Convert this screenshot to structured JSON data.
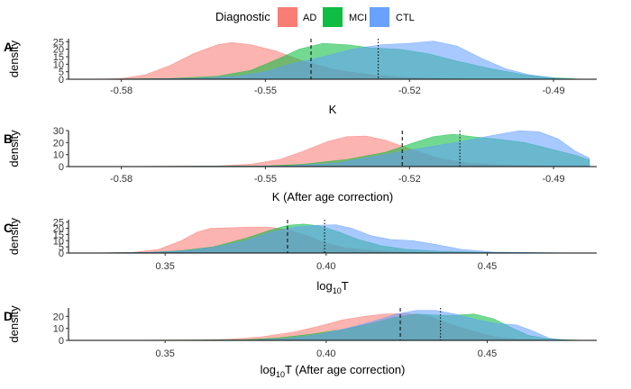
{
  "legend": {
    "title": "Diagnostic",
    "items": [
      {
        "label": "AD",
        "color": "#F8766D"
      },
      {
        "label": "MCI",
        "color": "#00BA38"
      },
      {
        "label": "CTL",
        "color": "#619CFF"
      }
    ]
  },
  "chart_data": [
    {
      "type": "area",
      "panel": "A",
      "ylabel": "density",
      "xlabel": "K",
      "xlim": [
        -0.591,
        -0.481
      ],
      "xticks": [
        -0.58,
        -0.55,
        -0.52,
        -0.49
      ],
      "xtick_labels": [
        "-0.58",
        "-0.55",
        "-0.52",
        "-0.49"
      ],
      "ylim": [
        0,
        27
      ],
      "yticks": [
        0,
        5,
        10,
        15,
        20,
        25
      ],
      "ytick_labels": [
        "0",
        "5",
        "10",
        "15",
        "20",
        "25"
      ],
      "vlines": [
        {
          "x": -0.5405,
          "style": "dashed"
        },
        {
          "x": -0.5265,
          "style": "dotted"
        }
      ],
      "series": [
        {
          "name": "AD",
          "color": "#F8766D",
          "points": [
            [
              -0.586,
              0
            ],
            [
              -0.58,
              0.5
            ],
            [
              -0.575,
              3
            ],
            [
              -0.57,
              9
            ],
            [
              -0.565,
              17
            ],
            [
              -0.56,
              23
            ],
            [
              -0.557,
              24.5
            ],
            [
              -0.553,
              23
            ],
            [
              -0.548,
              19
            ],
            [
              -0.542,
              12
            ],
            [
              -0.535,
              6
            ],
            [
              -0.528,
              3
            ],
            [
              -0.52,
              1
            ],
            [
              -0.51,
              0.3
            ],
            [
              -0.5,
              0
            ]
          ]
        },
        {
          "name": "MCI",
          "color": "#00BA38",
          "points": [
            [
              -0.586,
              0
            ],
            [
              -0.57,
              0.5
            ],
            [
              -0.56,
              2
            ],
            [
              -0.553,
              6
            ],
            [
              -0.547,
              14
            ],
            [
              -0.543,
              20
            ],
            [
              -0.538,
              24
            ],
            [
              -0.533,
              23
            ],
            [
              -0.528,
              21
            ],
            [
              -0.522,
              20
            ],
            [
              -0.516,
              17
            ],
            [
              -0.51,
              12
            ],
            [
              -0.503,
              7
            ],
            [
              -0.496,
              3
            ],
            [
              -0.49,
              1
            ],
            [
              -0.484,
              0
            ]
          ]
        },
        {
          "name": "CTL",
          "color": "#619CFF",
          "points": [
            [
              -0.586,
              0
            ],
            [
              -0.565,
              0.5
            ],
            [
              -0.556,
              2
            ],
            [
              -0.55,
              5
            ],
            [
              -0.545,
              10
            ],
            [
              -0.538,
              15
            ],
            [
              -0.532,
              20
            ],
            [
              -0.526,
              23
            ],
            [
              -0.52,
              24
            ],
            [
              -0.515,
              25.5
            ],
            [
              -0.51,
              22
            ],
            [
              -0.505,
              14
            ],
            [
              -0.5,
              7
            ],
            [
              -0.495,
              3
            ],
            [
              -0.489,
              0.5
            ],
            [
              -0.484,
              0
            ]
          ]
        }
      ]
    },
    {
      "type": "area",
      "panel": "B",
      "ylabel": "density",
      "xlabel": "K (After age correction)",
      "xlim": [
        -0.591,
        -0.481
      ],
      "xticks": [
        -0.58,
        -0.55,
        -0.52,
        -0.49
      ],
      "xtick_labels": [
        "-0.58",
        "-0.55",
        "-0.52",
        "-0.49"
      ],
      "ylim": [
        0,
        30
      ],
      "yticks": [
        0,
        10,
        20,
        30
      ],
      "ytick_labels": [
        "0",
        "10",
        "20",
        "30"
      ],
      "vlines": [
        {
          "x": -0.5215,
          "style": "dashed"
        },
        {
          "x": -0.5095,
          "style": "dotted"
        }
      ],
      "series": [
        {
          "name": "AD",
          "color": "#F8766D",
          "points": [
            [
              -0.586,
              0
            ],
            [
              -0.56,
              0.5
            ],
            [
              -0.553,
              2
            ],
            [
              -0.547,
              6
            ],
            [
              -0.542,
              13
            ],
            [
              -0.537,
              21
            ],
            [
              -0.533,
              25
            ],
            [
              -0.529,
              25.5
            ],
            [
              -0.525,
              22
            ],
            [
              -0.52,
              15
            ],
            [
              -0.514,
              7
            ],
            [
              -0.508,
              3
            ],
            [
              -0.5,
              1
            ],
            [
              -0.49,
              0.2
            ],
            [
              -0.483,
              0
            ]
          ]
        },
        {
          "name": "MCI",
          "color": "#00BA38",
          "points": [
            [
              -0.586,
              0
            ],
            [
              -0.55,
              0.5
            ],
            [
              -0.542,
              2
            ],
            [
              -0.533,
              6
            ],
            [
              -0.525,
              12
            ],
            [
              -0.519,
              20
            ],
            [
              -0.515,
              25
            ],
            [
              -0.511,
              27
            ],
            [
              -0.507,
              25
            ],
            [
              -0.502,
              23
            ],
            [
              -0.496,
              20
            ],
            [
              -0.49,
              14
            ],
            [
              -0.485,
              9
            ],
            [
              -0.4825,
              5.5
            ],
            [
              -0.4825,
              0
            ]
          ]
        },
        {
          "name": "CTL",
          "color": "#619CFF",
          "points": [
            [
              -0.586,
              0
            ],
            [
              -0.545,
              0.5
            ],
            [
              -0.535,
              3
            ],
            [
              -0.528,
              8
            ],
            [
              -0.521,
              13
            ],
            [
              -0.515,
              17
            ],
            [
              -0.509,
              21
            ],
            [
              -0.504,
              25
            ],
            [
              -0.5,
              28
            ],
            [
              -0.497,
              30
            ],
            [
              -0.493,
              29
            ],
            [
              -0.489,
              23
            ],
            [
              -0.4855,
              13
            ],
            [
              -0.4825,
              7
            ],
            [
              -0.4825,
              0
            ]
          ]
        }
      ]
    },
    {
      "type": "area",
      "panel": "C",
      "ylabel": "density",
      "xlabel": "log10T",
      "xlabel_base": "log",
      "xlabel_sub": "10",
      "xlabel_tail": "T",
      "xlim": [
        0.32,
        0.484
      ],
      "xticks": [
        0.35,
        0.4,
        0.45
      ],
      "xtick_labels": [
        "0.35",
        "0.40",
        "0.45"
      ],
      "ylim": [
        0,
        27
      ],
      "yticks": [
        0,
        5,
        10,
        15,
        20,
        25
      ],
      "ytick_labels": [
        "0",
        "5",
        "10",
        "15",
        "20",
        "25"
      ],
      "vlines": [
        {
          "x": 0.388,
          "style": "dashed"
        },
        {
          "x": 0.3995,
          "style": "dotted"
        }
      ],
      "series": [
        {
          "name": "AD",
          "color": "#F8766D",
          "points": [
            [
              0.325,
              0
            ],
            [
              0.34,
              0.5
            ],
            [
              0.348,
              3
            ],
            [
              0.355,
              10
            ],
            [
              0.36,
              17
            ],
            [
              0.364,
              20
            ],
            [
              0.37,
              20.5
            ],
            [
              0.376,
              21
            ],
            [
              0.382,
              21
            ],
            [
              0.388,
              19
            ],
            [
              0.394,
              14
            ],
            [
              0.4,
              8
            ],
            [
              0.406,
              4
            ],
            [
              0.415,
              2
            ],
            [
              0.425,
              0.5
            ],
            [
              0.44,
              0
            ]
          ]
        },
        {
          "name": "MCI",
          "color": "#00BA38",
          "points": [
            [
              0.325,
              0
            ],
            [
              0.345,
              0.5
            ],
            [
              0.355,
              2
            ],
            [
              0.365,
              5
            ],
            [
              0.375,
              12
            ],
            [
              0.382,
              18
            ],
            [
              0.388,
              22.5
            ],
            [
              0.393,
              23.5
            ],
            [
              0.398,
              22
            ],
            [
              0.404,
              17
            ],
            [
              0.41,
              11
            ],
            [
              0.417,
              6
            ],
            [
              0.425,
              3
            ],
            [
              0.435,
              1.5
            ],
            [
              0.45,
              0.5
            ],
            [
              0.48,
              0
            ]
          ]
        },
        {
          "name": "CTL",
          "color": "#619CFF",
          "points": [
            [
              0.325,
              0
            ],
            [
              0.345,
              0.5
            ],
            [
              0.357,
              2
            ],
            [
              0.366,
              5
            ],
            [
              0.375,
              10
            ],
            [
              0.383,
              17
            ],
            [
              0.39,
              21
            ],
            [
              0.397,
              22.5
            ],
            [
              0.403,
              23
            ],
            [
              0.408,
              20
            ],
            [
              0.414,
              14
            ],
            [
              0.42,
              11
            ],
            [
              0.427,
              10
            ],
            [
              0.434,
              7
            ],
            [
              0.442,
              3
            ],
            [
              0.452,
              0.8
            ],
            [
              0.48,
              0
            ]
          ]
        }
      ]
    },
    {
      "type": "area",
      "panel": "D",
      "ylabel": "density",
      "xlabel": "log10T (After age correction)",
      "xlabel_base": "log",
      "xlabel_sub": "10",
      "xlabel_tail": "T (After age correction)",
      "xlim": [
        0.32,
        0.484
      ],
      "xticks": [
        0.35,
        0.4,
        0.45
      ],
      "xtick_labels": [
        "0.35",
        "0.40",
        "0.45"
      ],
      "ylim": [
        0,
        27
      ],
      "yticks": [
        0,
        10,
        20
      ],
      "ytick_labels": [
        "0",
        "10",
        "20"
      ],
      "vlines": [
        {
          "x": 0.423,
          "style": "dashed"
        },
        {
          "x": 0.4355,
          "style": "dotted"
        }
      ],
      "series": [
        {
          "name": "AD",
          "color": "#F8766D",
          "points": [
            [
              0.325,
              0
            ],
            [
              0.36,
              0.3
            ],
            [
              0.37,
              1
            ],
            [
              0.38,
              3
            ],
            [
              0.39,
              7
            ],
            [
              0.398,
              12
            ],
            [
              0.405,
              17
            ],
            [
              0.412,
              20
            ],
            [
              0.418,
              22
            ],
            [
              0.425,
              22.5
            ],
            [
              0.432,
              20
            ],
            [
              0.438,
              14
            ],
            [
              0.445,
              8
            ],
            [
              0.452,
              3
            ],
            [
              0.46,
              1
            ],
            [
              0.47,
              0
            ]
          ]
        },
        {
          "name": "MCI",
          "color": "#00BA38",
          "points": [
            [
              0.325,
              0
            ],
            [
              0.375,
              0.5
            ],
            [
              0.385,
              2
            ],
            [
              0.395,
              5
            ],
            [
              0.405,
              9
            ],
            [
              0.414,
              14
            ],
            [
              0.421,
              19
            ],
            [
              0.428,
              22
            ],
            [
              0.435,
              21
            ],
            [
              0.44,
              21
            ],
            [
              0.446,
              22
            ],
            [
              0.452,
              18
            ],
            [
              0.458,
              10
            ],
            [
              0.463,
              4
            ],
            [
              0.47,
              1
            ],
            [
              0.48,
              0
            ]
          ]
        },
        {
          "name": "CTL",
          "color": "#619CFF",
          "points": [
            [
              0.325,
              0
            ],
            [
              0.378,
              0.3
            ],
            [
              0.388,
              1.5
            ],
            [
              0.398,
              5
            ],
            [
              0.408,
              11
            ],
            [
              0.416,
              17
            ],
            [
              0.422,
              22
            ],
            [
              0.428,
              25
            ],
            [
              0.434,
              25
            ],
            [
              0.44,
              22
            ],
            [
              0.447,
              17
            ],
            [
              0.453,
              14
            ],
            [
              0.459,
              13
            ],
            [
              0.464,
              8
            ],
            [
              0.469,
              2
            ],
            [
              0.475,
              0
            ]
          ]
        }
      ]
    }
  ]
}
